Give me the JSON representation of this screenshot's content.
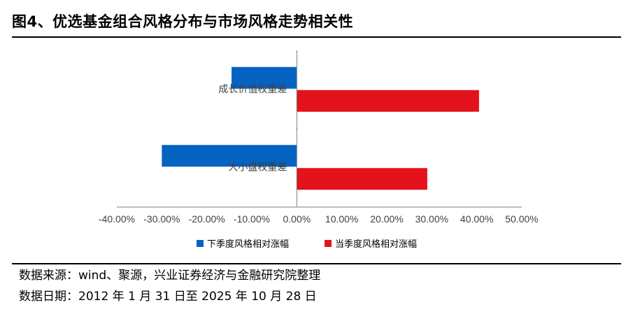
{
  "header": {
    "title": "图4、优选基金组合风格分布与市场风格走势相关性"
  },
  "chart_data": {
    "type": "bar",
    "orientation": "horizontal",
    "categories": [
      "成长价值权重差",
      "大小盘权重差"
    ],
    "series": [
      {
        "name": "下季度风格相对涨幅",
        "color": "#0563C1",
        "values": [
          -14.5,
          -30.0
        ]
      },
      {
        "name": "当季度风格相对涨幅",
        "color": "#E3121B",
        "values": [
          40.5,
          29.0
        ]
      }
    ],
    "x_tick_labels": [
      "-40.00%",
      "-30.00%",
      "-20.00%",
      "-10.00%",
      "0.00%",
      "10.00%",
      "20.00%",
      "30.00%",
      "40.00%",
      "50.00%"
    ],
    "xlim": [
      -40,
      50
    ],
    "grid": false,
    "legend": "bottom"
  },
  "legend": {
    "items": [
      {
        "label": "下季度风格相对涨幅",
        "color": "#0563C1"
      },
      {
        "label": "当季度风格相对涨幅",
        "color": "#E3121B"
      }
    ]
  },
  "footer": {
    "source": "数据来源：wind、聚源，兴业证券经济与金融研究院整理",
    "date_range": "数据日期：2012 年 1 月 31 日至 2025 年 10 月 28 日"
  }
}
